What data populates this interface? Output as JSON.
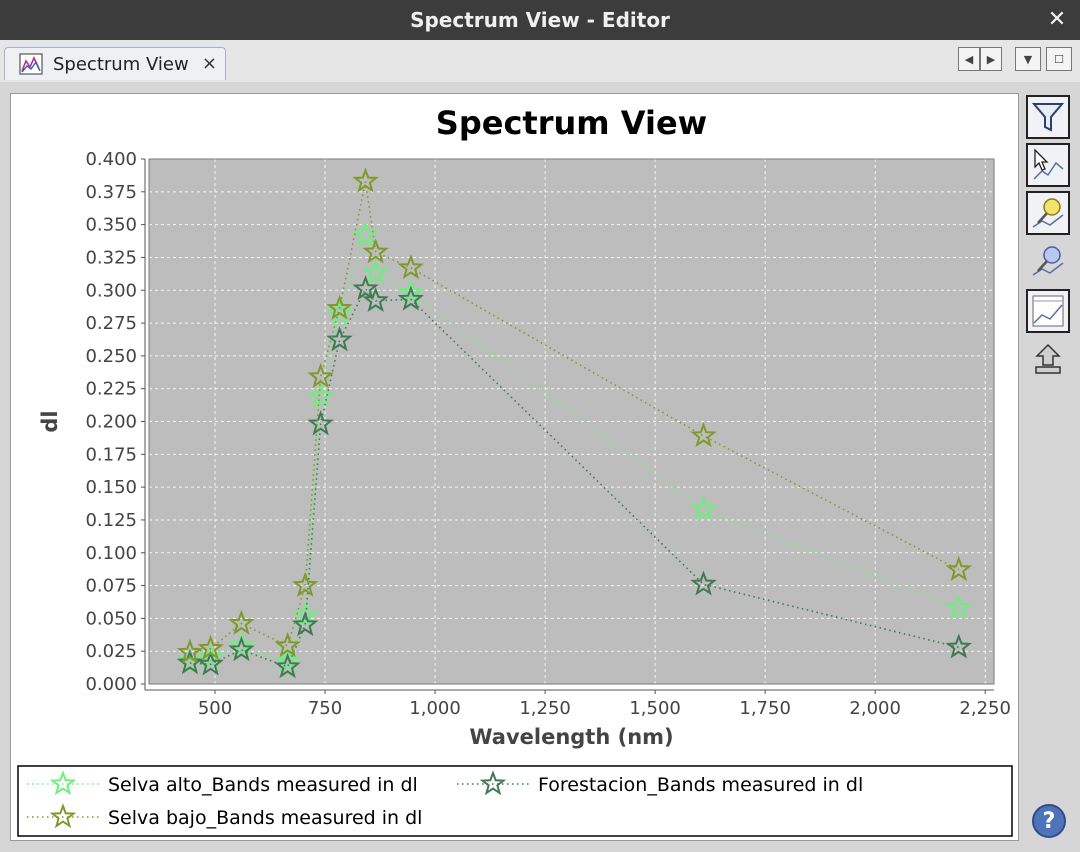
{
  "window": {
    "title": "Spectrum View - Editor",
    "close_glyph": "✕"
  },
  "tab": {
    "label": "Spectrum View",
    "close_glyph": "×",
    "icon": "spectrum-chart-icon"
  },
  "toolbar": {
    "tools": [
      {
        "name": "filter-bands-icon",
        "pressed": true
      },
      {
        "name": "select-spectra-cursor-icon",
        "pressed": true
      },
      {
        "name": "show-pin-spectra-icon",
        "pressed": true
      },
      {
        "name": "show-all-pins-icon",
        "pressed": false
      },
      {
        "name": "show-grid-icon",
        "pressed": true
      },
      {
        "name": "export-spectra-icon",
        "pressed": false
      }
    ],
    "help_label": "?"
  },
  "colors": {
    "plot_bg": "#bdbdbd",
    "selva_alto": "#6cf07d",
    "forestacion": "#3e7a52",
    "selva_bajo": "#7f9a2a"
  },
  "chart_data": {
    "type": "line",
    "title": "Spectrum View",
    "xlabel": "Wavelength (nm)",
    "ylabel": "dl",
    "xlim": [
      350,
      2270
    ],
    "ylim": [
      0,
      0.4
    ],
    "xticks": [
      500,
      750,
      1000,
      1250,
      1500,
      1750,
      2000,
      2250
    ],
    "xtick_labels": [
      "500",
      "750",
      "1,000",
      "1,250",
      "1,500",
      "1,750",
      "2,000",
      "2,250"
    ],
    "yticks": [
      0,
      0.025,
      0.05,
      0.075,
      0.1,
      0.125,
      0.15,
      0.175,
      0.2,
      0.225,
      0.25,
      0.275,
      0.3,
      0.325,
      0.35,
      0.375,
      0.4
    ],
    "ytick_labels": [
      "0.000",
      "0.025",
      "0.050",
      "0.075",
      "0.100",
      "0.125",
      "0.150",
      "0.175",
      "0.200",
      "0.225",
      "0.250",
      "0.275",
      "0.300",
      "0.325",
      "0.350",
      "0.375",
      "0.400"
    ],
    "grid": true,
    "legend_position": "bottom",
    "marker": "star",
    "line_style": "dotted",
    "x": [
      443,
      490,
      560,
      665,
      705,
      740,
      783,
      842,
      865,
      945,
      1610,
      2190
    ],
    "series": [
      {
        "name": "Selva alto_Bands measured in dl",
        "color": "#6cf07d",
        "values": [
          0.017,
          0.02,
          0.029,
          0.017,
          0.052,
          0.219,
          0.282,
          0.342,
          0.313,
          0.298,
          0.133,
          0.058
        ]
      },
      {
        "name": "Forestacion_Bands measured in dl",
        "color": "#3e7a52",
        "values": [
          0.016,
          0.015,
          0.026,
          0.013,
          0.045,
          0.198,
          0.262,
          0.301,
          0.292,
          0.293,
          0.076,
          0.028
        ]
      },
      {
        "name": "Selva bajo_Bands measured in dl",
        "color": "#7f9a2a",
        "values": [
          0.024,
          0.027,
          0.046,
          0.029,
          0.075,
          0.234,
          0.286,
          0.383,
          0.329,
          0.317,
          0.189,
          0.087
        ]
      }
    ]
  }
}
